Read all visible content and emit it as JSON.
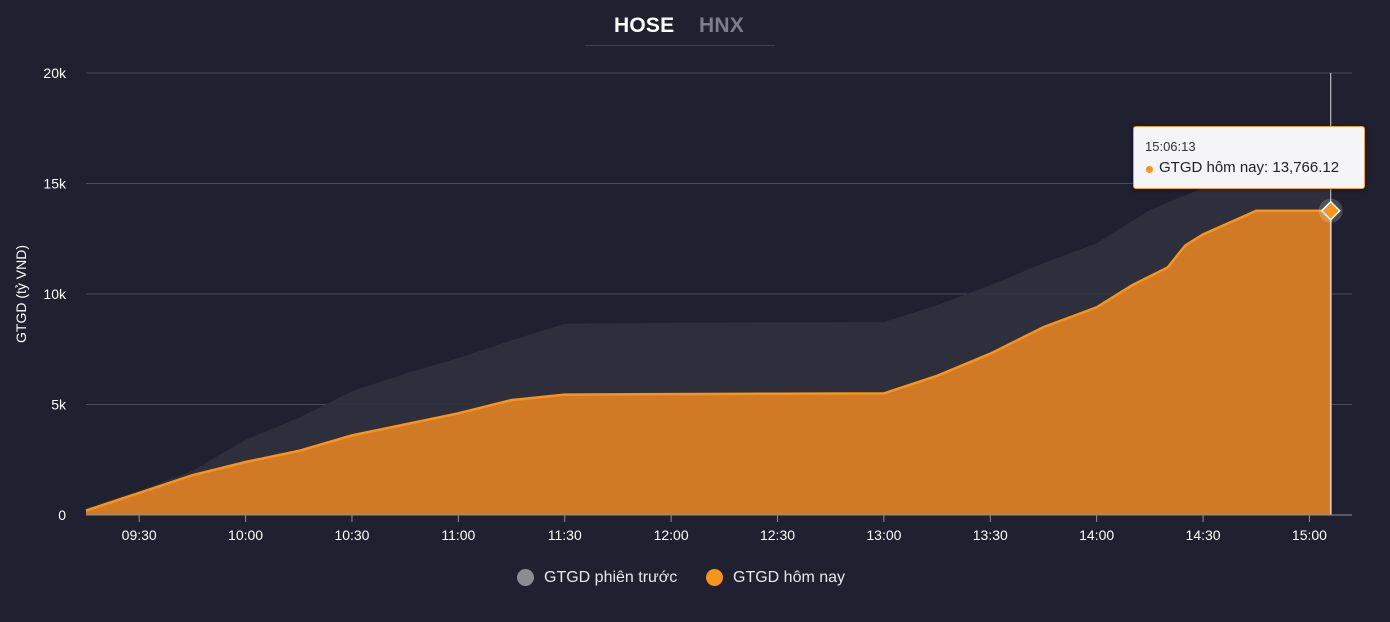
{
  "tabs": [
    {
      "label": "HOSE",
      "active": true
    },
    {
      "label": "HNX",
      "active": false
    }
  ],
  "colors": {
    "background": "#1f2030",
    "today": "#f7941d",
    "today_fill": "#d07a25",
    "previous": "#2f303e",
    "previous_legend": "#8b8b96",
    "grid": "#4a4c5c"
  },
  "chart_data": {
    "type": "area",
    "ylabel": "GTGD (tỷ VND)",
    "xlabel": "",
    "ylim": [
      0,
      20000
    ],
    "yticks": [
      0,
      5000,
      10000,
      15000,
      20000
    ],
    "ytick_labels": [
      "0",
      "5k",
      "10k",
      "15k",
      "20k"
    ],
    "x_range": [
      "09:15",
      "15:12"
    ],
    "xtick_labels": [
      "09:30",
      "10:00",
      "10:30",
      "11:00",
      "11:30",
      "12:00",
      "12:30",
      "13:00",
      "13:30",
      "14:00",
      "14:30",
      "15:00"
    ],
    "legend_position": "bottom",
    "series": [
      {
        "name": "GTGD phiên trước",
        "color": "#8b8b96",
        "points": [
          [
            "09:15",
            300
          ],
          [
            "09:30",
            1100
          ],
          [
            "09:45",
            2000
          ],
          [
            "10:00",
            3400
          ],
          [
            "10:15",
            4400
          ],
          [
            "10:30",
            5600
          ],
          [
            "10:45",
            6400
          ],
          [
            "11:00",
            7100
          ],
          [
            "11:15",
            7900
          ],
          [
            "11:30",
            8650
          ],
          [
            "12:00",
            8700
          ],
          [
            "12:30",
            8720
          ],
          [
            "13:00",
            8730
          ],
          [
            "13:15",
            9500
          ],
          [
            "13:30",
            10400
          ],
          [
            "13:45",
            11400
          ],
          [
            "14:00",
            12300
          ],
          [
            "14:15",
            13800
          ],
          [
            "14:30",
            14800
          ],
          [
            "14:45",
            15400
          ],
          [
            "15:00",
            15500
          ],
          [
            "15:06",
            15500
          ]
        ]
      },
      {
        "name": "GTGD hôm nay",
        "color": "#f7941d",
        "points": [
          [
            "09:15",
            200
          ],
          [
            "09:30",
            1000
          ],
          [
            "09:45",
            1800
          ],
          [
            "10:00",
            2400
          ],
          [
            "10:15",
            2900
          ],
          [
            "10:30",
            3600
          ],
          [
            "10:45",
            4100
          ],
          [
            "11:00",
            4600
          ],
          [
            "11:15",
            5200
          ],
          [
            "11:30",
            5450
          ],
          [
            "12:00",
            5470
          ],
          [
            "12:30",
            5490
          ],
          [
            "13:00",
            5500
          ],
          [
            "13:15",
            6300
          ],
          [
            "13:30",
            7300
          ],
          [
            "13:45",
            8500
          ],
          [
            "14:00",
            9400
          ],
          [
            "14:10",
            10400
          ],
          [
            "14:20",
            11200
          ],
          [
            "14:25",
            12200
          ],
          [
            "14:30",
            12700
          ],
          [
            "14:45",
            13766.12
          ],
          [
            "15:00",
            13766.12
          ],
          [
            "15:06",
            13766.12
          ]
        ]
      }
    ],
    "tooltip": {
      "time": "15:06:13",
      "label": "GTGD hôm nay: 13,766.12",
      "series": "GTGD hôm nay",
      "value": 13766.12
    }
  }
}
